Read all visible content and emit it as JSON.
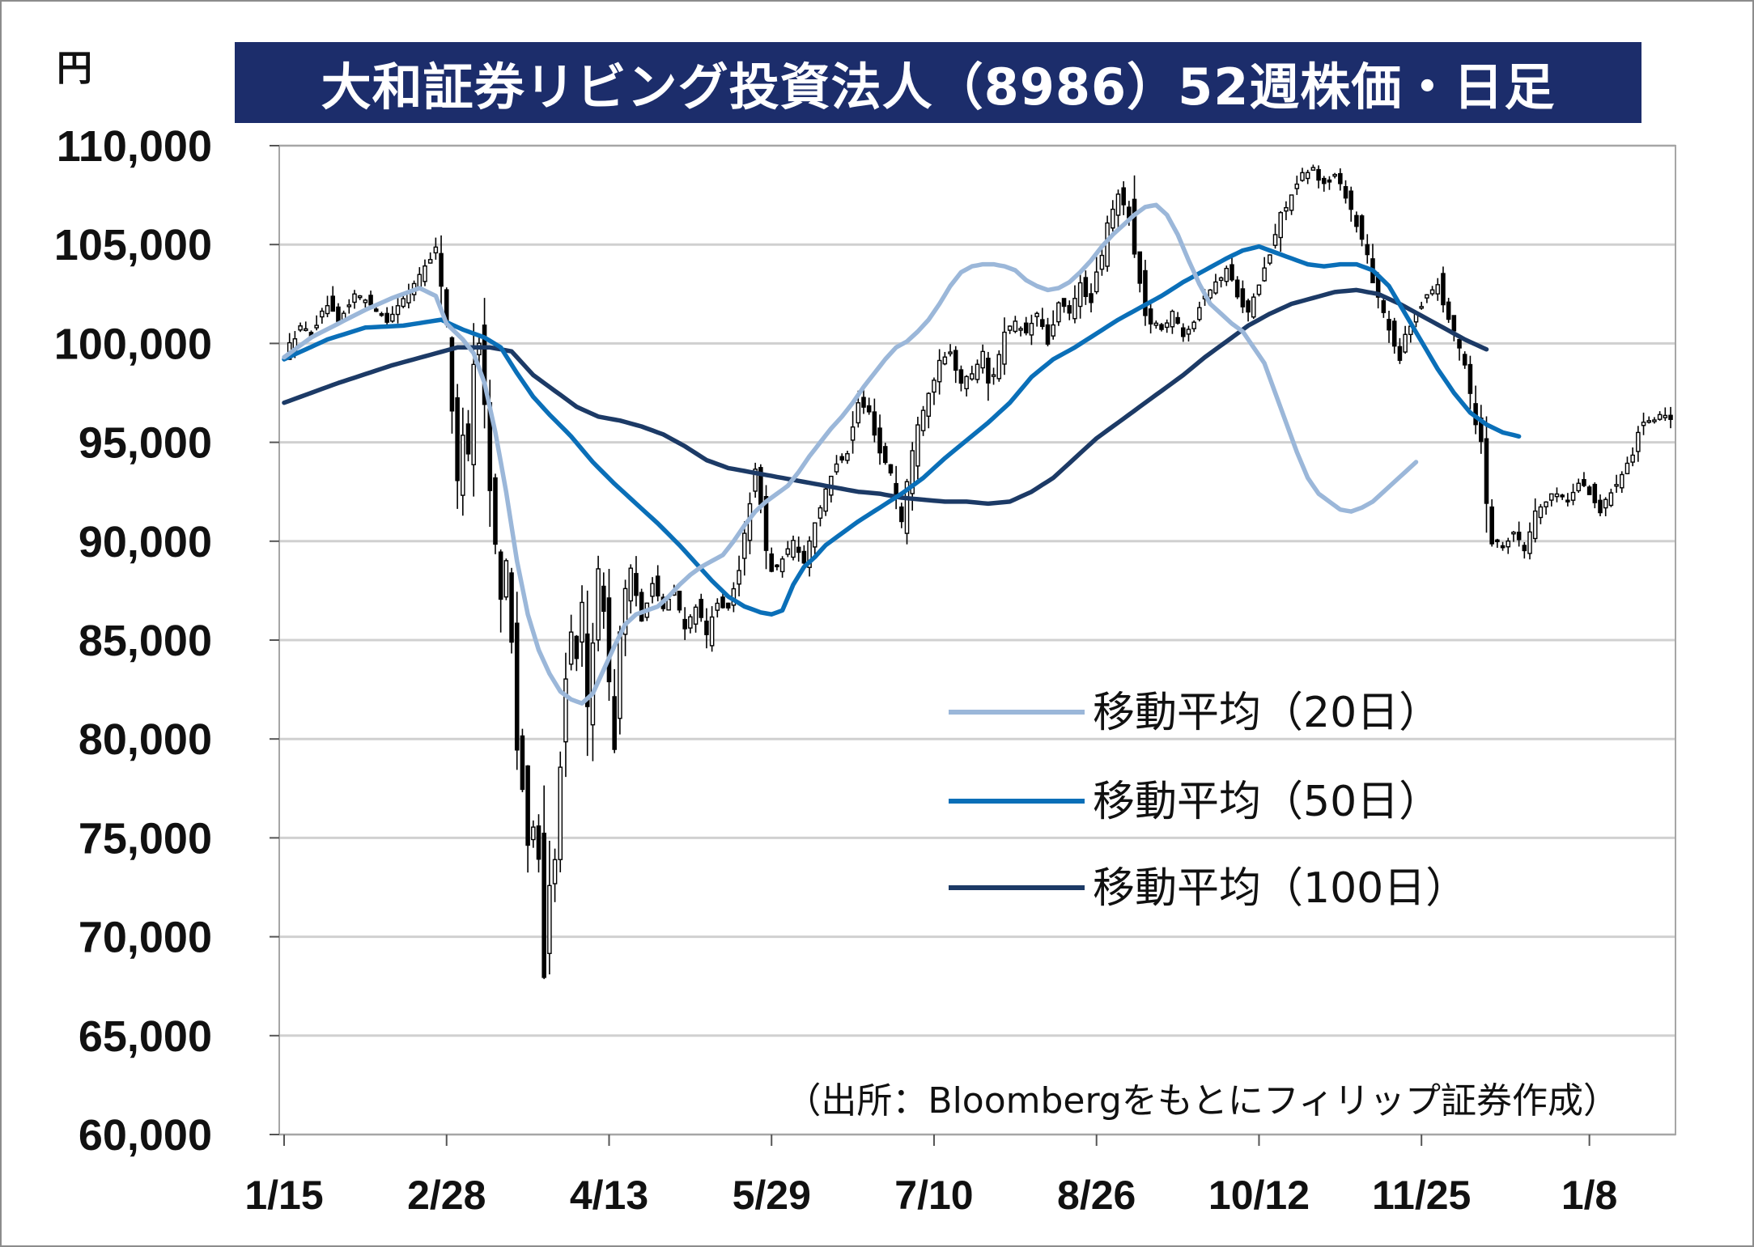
{
  "page": {
    "currency_label": "円",
    "title": "大和証券リビング投資法人（8986）52週株価・日足",
    "source": "（出所：Bloombergをもとにフィリップ証券作成）"
  },
  "colors": {
    "title_bg": "#1c2d6b",
    "candle": "#000000",
    "ma20": "#9bb7d9",
    "ma50": "#0a6fb8",
    "ma100": "#1c3a66",
    "grid": "#d0d0d0"
  },
  "chart_data": {
    "type": "candlestick",
    "grid": "horizontal",
    "legend_position": "right-middle",
    "ylim": [
      60000,
      110000
    ],
    "y_ticks": [
      {
        "value": 110000,
        "label": "110,000"
      },
      {
        "value": 105000,
        "label": "105,000"
      },
      {
        "value": 100000,
        "label": "100,000"
      },
      {
        "value": 95000,
        "label": "95,000"
      },
      {
        "value": 90000,
        "label": "90,000"
      },
      {
        "value": 85000,
        "label": "85,000"
      },
      {
        "value": 80000,
        "label": "80,000"
      },
      {
        "value": 75000,
        "label": "75,000"
      },
      {
        "value": 70000,
        "label": "70,000"
      },
      {
        "value": 65000,
        "label": "65,000"
      },
      {
        "value": 60000,
        "label": "60,000"
      }
    ],
    "x_ticks": [
      {
        "index": 0,
        "label": "1/15"
      },
      {
        "index": 30,
        "label": "2/28"
      },
      {
        "index": 60,
        "label": "4/13"
      },
      {
        "index": 90,
        "label": "5/29"
      },
      {
        "index": 120,
        "label": "7/10"
      },
      {
        "index": 150,
        "label": "8/26"
      },
      {
        "index": 180,
        "label": "10/12"
      },
      {
        "index": 210,
        "label": "11/25"
      },
      {
        "index": 241,
        "label": "1/8"
      }
    ],
    "price_anchors": [
      [
        0,
        99500
      ],
      [
        3,
        100800
      ],
      [
        5,
        100500
      ],
      [
        8,
        102000
      ],
      [
        10,
        101000
      ],
      [
        13,
        102500
      ],
      [
        16,
        102000
      ],
      [
        19,
        101200
      ],
      [
        22,
        102200
      ],
      [
        25,
        103500
      ],
      [
        28,
        104800
      ],
      [
        29,
        103000
      ],
      [
        30,
        101000
      ],
      [
        31,
        96500
      ],
      [
        32,
        93000
      ],
      [
        33,
        95500
      ],
      [
        34,
        94500
      ],
      [
        35,
        99000
      ],
      [
        36,
        100000
      ],
      [
        37,
        97000
      ],
      [
        38,
        92500
      ],
      [
        39,
        90000
      ],
      [
        40,
        87000
      ],
      [
        41,
        89000
      ],
      [
        42,
        85000
      ],
      [
        43,
        79500
      ],
      [
        44,
        77500
      ],
      [
        45,
        74500
      ],
      [
        46,
        75500
      ],
      [
        47,
        74000
      ],
      [
        48,
        68000
      ],
      [
        49,
        72500
      ],
      [
        50,
        74000
      ],
      [
        51,
        78500
      ],
      [
        52,
        83000
      ],
      [
        53,
        85500
      ],
      [
        54,
        84000
      ],
      [
        55,
        87000
      ],
      [
        56,
        81500
      ],
      [
        57,
        85000
      ],
      [
        58,
        88500
      ],
      [
        59,
        86500
      ],
      [
        60,
        83000
      ],
      [
        61,
        79500
      ],
      [
        62,
        85500
      ],
      [
        63,
        87500
      ],
      [
        64,
        88500
      ],
      [
        66,
        86000
      ],
      [
        68,
        88000
      ],
      [
        70,
        86500
      ],
      [
        72,
        87500
      ],
      [
        74,
        85500
      ],
      [
        76,
        86800
      ],
      [
        78,
        85200
      ],
      [
        80,
        87000
      ],
      [
        82,
        86500
      ],
      [
        84,
        88500
      ],
      [
        85,
        90500
      ],
      [
        86,
        92000
      ],
      [
        87,
        93500
      ],
      [
        88,
        92000
      ],
      [
        89,
        89500
      ],
      [
        90,
        88500
      ],
      [
        92,
        89000
      ],
      [
        94,
        90000
      ],
      [
        96,
        89000
      ],
      [
        98,
        91000
      ],
      [
        100,
        92500
      ],
      [
        102,
        94000
      ],
      [
        104,
        94500
      ],
      [
        106,
        97000
      ],
      [
        108,
        96500
      ],
      [
        110,
        94500
      ],
      [
        112,
        93500
      ],
      [
        114,
        91000
      ],
      [
        115,
        93000
      ],
      [
        117,
        96000
      ],
      [
        119,
        97500
      ],
      [
        121,
        99000
      ],
      [
        123,
        99500
      ],
      [
        125,
        98000
      ],
      [
        127,
        98500
      ],
      [
        129,
        99500
      ],
      [
        130,
        98000
      ],
      [
        131,
        98500
      ],
      [
        133,
        100500
      ],
      [
        135,
        101000
      ],
      [
        137,
        100500
      ],
      [
        139,
        101500
      ],
      [
        141,
        100000
      ],
      [
        143,
        102000
      ],
      [
        145,
        101500
      ],
      [
        147,
        103000
      ],
      [
        149,
        102000
      ],
      [
        150,
        103500
      ],
      [
        151,
        104500
      ],
      [
        152,
        106000
      ],
      [
        154,
        107500
      ],
      [
        156,
        106500
      ],
      [
        157,
        104500
      ],
      [
        158,
        103000
      ],
      [
        159,
        101500
      ],
      [
        160,
        101000
      ],
      [
        162,
        100800
      ],
      [
        164,
        101500
      ],
      [
        166,
        100500
      ],
      [
        168,
        101200
      ],
      [
        170,
        102500
      ],
      [
        172,
        103000
      ],
      [
        174,
        103800
      ],
      [
        176,
        102500
      ],
      [
        178,
        101500
      ],
      [
        180,
        103000
      ],
      [
        182,
        104500
      ],
      [
        184,
        106500
      ],
      [
        186,
        107500
      ],
      [
        188,
        108500
      ],
      [
        190,
        108800
      ],
      [
        192,
        108000
      ],
      [
        194,
        108500
      ],
      [
        196,
        107500
      ],
      [
        198,
        106000
      ],
      [
        200,
        104500
      ],
      [
        201,
        103000
      ],
      [
        203,
        101500
      ],
      [
        205,
        100000
      ],
      [
        206,
        99000
      ],
      [
        207,
        100500
      ],
      [
        209,
        101500
      ],
      [
        211,
        102500
      ],
      [
        213,
        103000
      ],
      [
        214,
        102000
      ],
      [
        216,
        100500
      ],
      [
        218,
        99000
      ],
      [
        219,
        97500
      ],
      [
        220,
        96000
      ],
      [
        221,
        95000
      ],
      [
        222,
        92000
      ],
      [
        223,
        90000
      ],
      [
        225,
        89800
      ],
      [
        227,
        90500
      ],
      [
        229,
        89500
      ],
      [
        231,
        91500
      ],
      [
        233,
        92000
      ],
      [
        235,
        92500
      ],
      [
        237,
        92000
      ],
      [
        239,
        93000
      ],
      [
        241,
        92500
      ],
      [
        243,
        91500
      ],
      [
        245,
        92500
      ],
      [
        247,
        93500
      ],
      [
        249,
        94500
      ],
      [
        250,
        95500
      ],
      [
        251,
        96000
      ],
      [
        253,
        96000
      ],
      [
        255,
        96500
      ],
      [
        256,
        96200
      ]
    ],
    "ma20_anchors": [
      [
        0,
        99300
      ],
      [
        5,
        100300
      ],
      [
        10,
        101000
      ],
      [
        15,
        101700
      ],
      [
        20,
        102300
      ],
      [
        25,
        102800
      ],
      [
        28,
        102400
      ],
      [
        30,
        101000
      ],
      [
        33,
        100200
      ],
      [
        35,
        99500
      ],
      [
        37,
        98000
      ],
      [
        39,
        95500
      ],
      [
        41,
        92500
      ],
      [
        43,
        89000
      ],
      [
        45,
        86300
      ],
      [
        47,
        84500
      ],
      [
        49,
        83300
      ],
      [
        51,
        82400
      ],
      [
        53,
        82000
      ],
      [
        55,
        81800
      ],
      [
        57,
        82300
      ],
      [
        59,
        83500
      ],
      [
        61,
        84700
      ],
      [
        63,
        85800
      ],
      [
        65,
        86300
      ],
      [
        67,
        86500
      ],
      [
        69,
        86700
      ],
      [
        71,
        87200
      ],
      [
        73,
        87800
      ],
      [
        75,
        88300
      ],
      [
        77,
        88700
      ],
      [
        79,
        89000
      ],
      [
        81,
        89300
      ],
      [
        83,
        90000
      ],
      [
        85,
        90800
      ],
      [
        87,
        91500
      ],
      [
        89,
        92000
      ],
      [
        91,
        92400
      ],
      [
        93,
        92800
      ],
      [
        95,
        93500
      ],
      [
        97,
        94300
      ],
      [
        99,
        95000
      ],
      [
        101,
        95700
      ],
      [
        103,
        96300
      ],
      [
        105,
        97000
      ],
      [
        107,
        97800
      ],
      [
        109,
        98500
      ],
      [
        111,
        99200
      ],
      [
        113,
        99800
      ],
      [
        115,
        100100
      ],
      [
        117,
        100600
      ],
      [
        119,
        101200
      ],
      [
        121,
        102000
      ],
      [
        123,
        102900
      ],
      [
        125,
        103600
      ],
      [
        127,
        103900
      ],
      [
        129,
        104000
      ],
      [
        131,
        104000
      ],
      [
        133,
        103900
      ],
      [
        135,
        103700
      ],
      [
        137,
        103200
      ],
      [
        139,
        102900
      ],
      [
        141,
        102700
      ],
      [
        143,
        102800
      ],
      [
        145,
        103100
      ],
      [
        147,
        103600
      ],
      [
        149,
        104200
      ],
      [
        151,
        104900
      ],
      [
        153,
        105500
      ],
      [
        155,
        106000
      ],
      [
        157,
        106500
      ],
      [
        159,
        106900
      ],
      [
        161,
        107000
      ],
      [
        163,
        106500
      ],
      [
        165,
        105500
      ],
      [
        167,
        104200
      ],
      [
        169,
        103000
      ],
      [
        171,
        102000
      ],
      [
        173,
        101500
      ],
      [
        175,
        101000
      ],
      [
        177,
        100600
      ],
      [
        179,
        99800
      ],
      [
        181,
        99000
      ],
      [
        183,
        97500
      ],
      [
        185,
        96000
      ],
      [
        187,
        94500
      ],
      [
        189,
        93200
      ],
      [
        191,
        92400
      ],
      [
        193,
        92000
      ],
      [
        195,
        91600
      ],
      [
        197,
        91500
      ],
      [
        199,
        91700
      ],
      [
        201,
        92000
      ],
      [
        203,
        92500
      ],
      [
        205,
        93000
      ],
      [
        207,
        93500
      ],
      [
        209,
        94000
      ]
    ],
    "ma50_anchors": [
      [
        0,
        99200
      ],
      [
        8,
        100200
      ],
      [
        15,
        100800
      ],
      [
        22,
        100900
      ],
      [
        29,
        101200
      ],
      [
        33,
        100700
      ],
      [
        37,
        100300
      ],
      [
        40,
        99800
      ],
      [
        43,
        98500
      ],
      [
        46,
        97300
      ],
      [
        49,
        96400
      ],
      [
        53,
        95300
      ],
      [
        57,
        94000
      ],
      [
        61,
        92900
      ],
      [
        65,
        91900
      ],
      [
        69,
        90900
      ],
      [
        73,
        89800
      ],
      [
        76,
        88900
      ],
      [
        79,
        88000
      ],
      [
        82,
        87200
      ],
      [
        85,
        86700
      ],
      [
        88,
        86400
      ],
      [
        90,
        86300
      ],
      [
        92,
        86500
      ],
      [
        94,
        87800
      ],
      [
        96,
        88700
      ],
      [
        98,
        89200
      ],
      [
        100,
        89800
      ],
      [
        103,
        90400
      ],
      [
        106,
        91000
      ],
      [
        110,
        91700
      ],
      [
        114,
        92400
      ],
      [
        118,
        93200
      ],
      [
        122,
        94200
      ],
      [
        126,
        95100
      ],
      [
        130,
        96000
      ],
      [
        134,
        97000
      ],
      [
        138,
        98300
      ],
      [
        142,
        99200
      ],
      [
        146,
        99800
      ],
      [
        150,
        100500
      ],
      [
        154,
        101200
      ],
      [
        158,
        101800
      ],
      [
        162,
        102400
      ],
      [
        166,
        103100
      ],
      [
        170,
        103700
      ],
      [
        174,
        104300
      ],
      [
        177,
        104700
      ],
      [
        180,
        104900
      ],
      [
        183,
        104600
      ],
      [
        186,
        104300
      ],
      [
        189,
        104000
      ],
      [
        192,
        103900
      ],
      [
        195,
        104000
      ],
      [
        198,
        104000
      ],
      [
        201,
        103700
      ],
      [
        204,
        102900
      ],
      [
        207,
        101500
      ],
      [
        210,
        100100
      ],
      [
        213,
        98700
      ],
      [
        216,
        97500
      ],
      [
        219,
        96500
      ],
      [
        222,
        95900
      ],
      [
        225,
        95500
      ],
      [
        228,
        95300
      ]
    ],
    "ma100_anchors": [
      [
        0,
        97000
      ],
      [
        10,
        98000
      ],
      [
        20,
        98900
      ],
      [
        28,
        99500
      ],
      [
        32,
        99800
      ],
      [
        38,
        99800
      ],
      [
        42,
        99600
      ],
      [
        46,
        98400
      ],
      [
        50,
        97600
      ],
      [
        54,
        96800
      ],
      [
        58,
        96300
      ],
      [
        62,
        96100
      ],
      [
        66,
        95800
      ],
      [
        70,
        95400
      ],
      [
        74,
        94800
      ],
      [
        78,
        94100
      ],
      [
        82,
        93700
      ],
      [
        86,
        93500
      ],
      [
        90,
        93300
      ],
      [
        94,
        93100
      ],
      [
        98,
        92900
      ],
      [
        102,
        92700
      ],
      [
        106,
        92500
      ],
      [
        110,
        92400
      ],
      [
        114,
        92200
      ],
      [
        118,
        92100
      ],
      [
        122,
        92000
      ],
      [
        126,
        92000
      ],
      [
        130,
        91900
      ],
      [
        134,
        92000
      ],
      [
        138,
        92500
      ],
      [
        142,
        93200
      ],
      [
        146,
        94200
      ],
      [
        150,
        95200
      ],
      [
        154,
        96000
      ],
      [
        158,
        96800
      ],
      [
        162,
        97600
      ],
      [
        166,
        98400
      ],
      [
        170,
        99300
      ],
      [
        174,
        100100
      ],
      [
        178,
        100900
      ],
      [
        182,
        101500
      ],
      [
        186,
        102000
      ],
      [
        190,
        102300
      ],
      [
        194,
        102600
      ],
      [
        198,
        102700
      ],
      [
        202,
        102500
      ],
      [
        206,
        102000
      ],
      [
        210,
        101400
      ],
      [
        214,
        100800
      ],
      [
        218,
        100200
      ],
      [
        222,
        99700
      ]
    ]
  },
  "legend": {
    "items": [
      {
        "key": "ma20",
        "label": "移動平均（20日）"
      },
      {
        "key": "ma50",
        "label": "移動平均（50日）"
      },
      {
        "key": "ma100",
        "label": "移動平均（100日）"
      }
    ]
  }
}
